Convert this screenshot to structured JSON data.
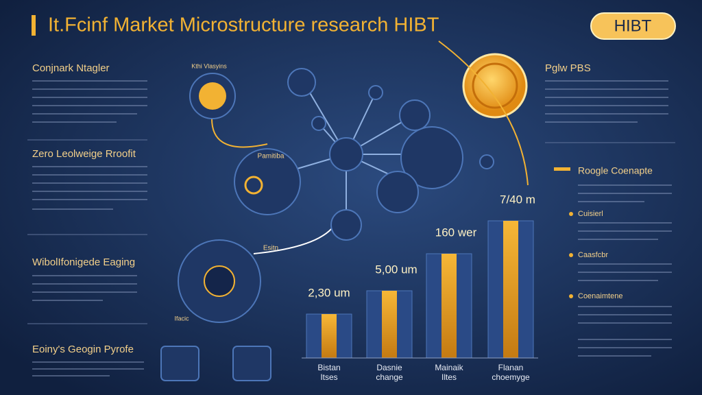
{
  "header": {
    "title": "It.Fcinf Market Microstructure research HIBT",
    "badge": "HIBT"
  },
  "left_sections": [
    {
      "heading": "Conjnark Ntagler"
    },
    {
      "heading": "Zero Leolweige Rroofit"
    },
    {
      "heading": "WibolIfonigede Eaging"
    },
    {
      "heading": "Eoiny's Geogin Pyrofe"
    }
  ],
  "right_panel": {
    "title": "Pglw PBS",
    "concepts_title": "Roogle Coenapte",
    "items": [
      "Cuisierl",
      "Caasfcbr",
      "Coenaimtene"
    ]
  },
  "diagram": {
    "labels": [
      "Kthi Vlasyins",
      "Pamitiba",
      "Esitn",
      "Ifacic"
    ]
  },
  "bars": {
    "value_labels": [
      "2,30 um",
      "5,00 um",
      "160 wer",
      "7/40 m"
    ],
    "categories": [
      [
        "Bistan",
        "Itses"
      ],
      [
        "Dasnie",
        "change"
      ],
      [
        "Mainaik",
        "Iltes"
      ],
      [
        "Flanan",
        "choemyge"
      ]
    ]
  }
}
